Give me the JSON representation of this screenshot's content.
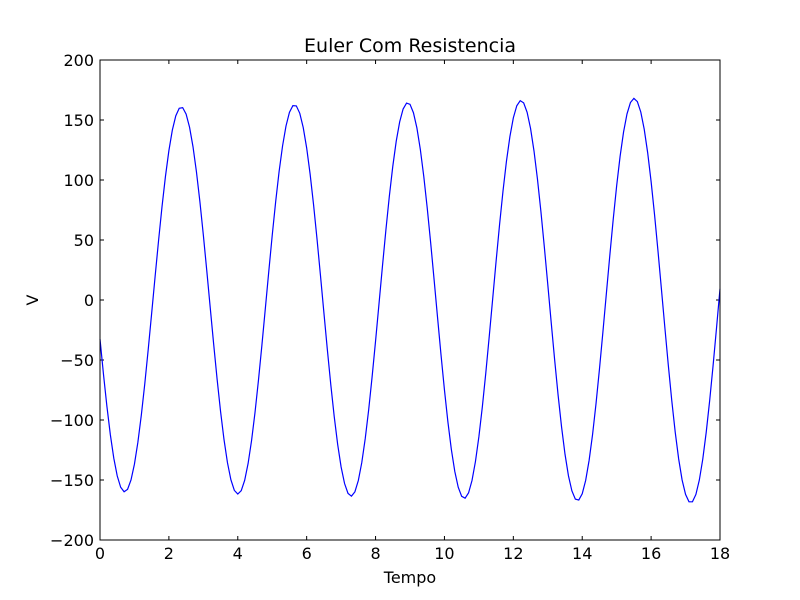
{
  "chart_data": {
    "type": "line",
    "title": "Euler Com Resistencia",
    "xlabel": "Tempo",
    "ylabel": "V",
    "xlim": [
      0,
      18
    ],
    "ylim": [
      -200,
      200
    ],
    "xticks": [
      0,
      2,
      4,
      6,
      8,
      10,
      12,
      14,
      16,
      18
    ],
    "yticks": [
      -200,
      -150,
      -100,
      -50,
      0,
      50,
      100,
      150,
      200
    ],
    "xtick_labels": [
      "0",
      "2",
      "4",
      "6",
      "8",
      "10",
      "12",
      "14",
      "16",
      "18"
    ],
    "ytick_labels": [
      "−200",
      "−150",
      "−100",
      "−50",
      "0",
      "50",
      "100",
      "150",
      "200"
    ],
    "grid": false,
    "series": [
      {
        "name": "V",
        "color": "#0000ff",
        "model": {
          "form": "A(t) * cos(omega * t + phi)",
          "amplitude_start": 159.5,
          "amplitude_growth_per_unit_time": 0.55,
          "omega": 1.9115,
          "phi": 1.7764,
          "t_start": 0,
          "t_end": 18,
          "sample_step": 0.1
        },
        "extrema": [
          {
            "t": 0.7,
            "v": -160
          },
          {
            "t": 2.38,
            "v": 162
          },
          {
            "t": 4.02,
            "v": -163
          },
          {
            "t": 5.65,
            "v": 164
          },
          {
            "t": 7.31,
            "v": -165
          },
          {
            "t": 8.95,
            "v": 166
          },
          {
            "t": 10.58,
            "v": -167
          },
          {
            "t": 12.22,
            "v": 168
          },
          {
            "t": 13.85,
            "v": -169
          },
          {
            "t": 15.5,
            "v": 170
          },
          {
            "t": 17.15,
            "v": -171
          }
        ],
        "endpoints": [
          {
            "t": 0,
            "v": -32
          },
          {
            "t": 18,
            "v": 8
          }
        ]
      }
    ]
  }
}
